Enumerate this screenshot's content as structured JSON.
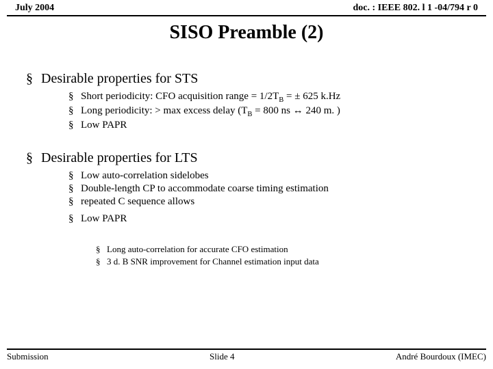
{
  "header": {
    "date": "July 2004",
    "docref": "doc. : IEEE 802. l 1 -04/794 r 0"
  },
  "title": "SISO Preamble (2)",
  "sections": [
    {
      "heading": "Desirable properties for STS",
      "items": [
        {
          "html": "Short periodicity: CFO acquisition range = 1/2T<sub>B</sub> = ± 625 k.Hz"
        },
        {
          "html": "Long periodicity:  > max excess delay (T<sub>B</sub> = 800 ns ↔ 240 m. )"
        },
        {
          "html": "Low PAPR"
        }
      ]
    },
    {
      "heading": "Desirable properties for LTS",
      "items": [
        {
          "html": "Low auto-correlation sidelobes"
        },
        {
          "html": "Double-length CP to accommodate coarse timing estimation"
        },
        {
          "html": "repeated C sequence allows",
          "sub": [
            "Long auto-correlation for accurate CFO estimation",
            "3 d. B SNR improvement for Channel estimation input data"
          ]
        },
        {
          "html": "Low PAPR",
          "gapBefore": true
        }
      ]
    }
  ],
  "footer": {
    "left": "Submission",
    "center": "Slide 4",
    "right": "André Bourdoux (IMEC)"
  }
}
